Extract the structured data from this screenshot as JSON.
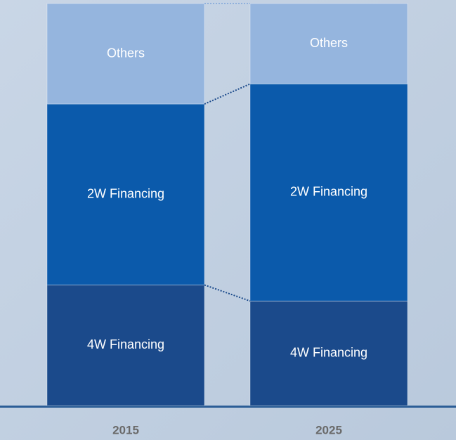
{
  "chart_data": {
    "type": "bar",
    "stacked": true,
    "categories": [
      "2015",
      "2025"
    ],
    "series": [
      {
        "name": "4W Financing",
        "color": "#1b4a8b",
        "values": [
          30,
          26
        ]
      },
      {
        "name": "2W Financing",
        "color": "#0b5aab",
        "values": [
          45,
          54
        ]
      },
      {
        "name": "Others",
        "color": "#95b5de",
        "values": [
          25,
          20
        ]
      }
    ]
  }
}
